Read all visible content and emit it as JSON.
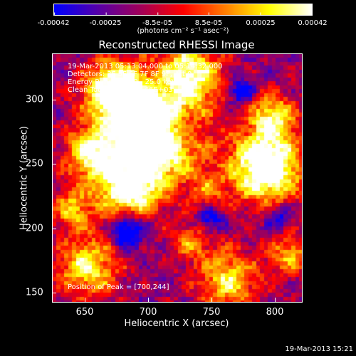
{
  "colorbar": {
    "tick_labels": [
      "-0.00042",
      "-0.00025",
      "-8.5e-05",
      "8.5e-05",
      "0.00025",
      "0.00042"
    ],
    "units_label": "(photons cm⁻² s⁻¹ asec⁻²)",
    "colors": [
      "#0000ff",
      "#5500aa",
      "#a0005a",
      "#ff0000",
      "#ff8000",
      "#ffff00",
      "#ffffff"
    ]
  },
  "plot": {
    "title": "Reconstructed RHESSI Image",
    "annotations": {
      "time_range": "19-Mar-2013 05:13:04.000 to 05:14:32.000",
      "detectors": "Detectors: 3F 5F 6F 7F 8F 9F, Att 0",
      "energy_range": "Energy Range: 12.0 - 25.0 keV",
      "method": "Clean    Total counts: 1.46E+03",
      "peak": "Position of Peak = [700,244]"
    },
    "xlabel": "Heliocentric X (arcsec)",
    "ylabel": "Heliocentric Y (arcsec)",
    "xticks": [
      "650",
      "700",
      "750",
      "800"
    ],
    "yticks": [
      "150",
      "200",
      "250",
      "300"
    ],
    "xlim": [
      625,
      820
    ],
    "ylim": [
      145,
      340
    ]
  },
  "timestamp": "19-Mar-2013 15:21"
}
